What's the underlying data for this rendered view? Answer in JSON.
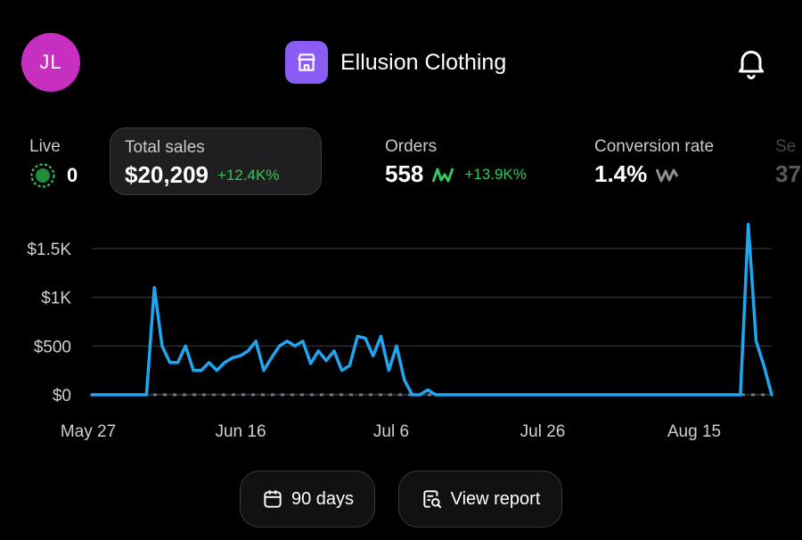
{
  "header": {
    "avatar_initials": "JL",
    "store_name": "Ellusion Clothing",
    "store_icon": "storefront-icon",
    "notification_icon": "bell-icon"
  },
  "metrics": {
    "live": {
      "label": "Live",
      "value": "0"
    },
    "total_sales": {
      "label": "Total sales",
      "value": "$20,209",
      "delta": "+12.4K%"
    },
    "orders": {
      "label": "Orders",
      "value": "558",
      "delta": "+13.9K%"
    },
    "conversion_rate": {
      "label": "Conversion rate",
      "value": "1.4%"
    },
    "sessions": {
      "label": "Se",
      "value": "37"
    }
  },
  "colors": {
    "accent_line": "#1ea7f0",
    "positive": "#34c759",
    "avatar": "#c72fc1",
    "store_icon_bg": "#8b5cf6"
  },
  "chart_data": {
    "type": "line",
    "y_ticks": [
      "$0",
      "$500",
      "$1K",
      "$1.5K"
    ],
    "x_ticks": [
      "May 27",
      "Jun 16",
      "Jul 6",
      "Jul 26",
      "Aug 15"
    ],
    "ylim": [
      0,
      1500
    ],
    "grid": true,
    "series": [
      {
        "x": [
          0,
          7,
          8,
          9,
          10,
          11,
          12,
          13,
          14,
          15,
          16,
          17,
          18,
          19,
          20,
          21,
          22,
          23,
          24,
          25,
          26,
          27,
          28,
          29,
          30,
          31,
          32,
          33,
          34,
          35,
          36,
          37,
          38,
          39,
          40,
          41,
          42,
          43,
          44,
          45,
          46,
          47,
          48,
          49,
          50,
          51,
          52,
          53,
          54,
          55,
          56,
          57,
          58,
          59,
          60,
          61,
          62,
          63,
          64,
          65,
          66,
          67,
          68,
          69,
          70,
          71,
          72,
          73,
          74,
          75,
          76,
          77,
          78,
          79,
          80,
          81,
          82,
          83,
          84,
          85,
          86,
          87
        ],
        "values": [
          0,
          0,
          1100,
          500,
          330,
          330,
          500,
          250,
          250,
          330,
          250,
          330,
          380,
          400,
          450,
          550,
          250,
          380,
          500,
          550,
          500,
          550,
          320,
          450,
          350,
          450,
          250,
          300,
          600,
          580,
          400,
          600,
          250,
          500,
          150,
          0,
          0,
          50,
          0,
          0,
          0,
          0,
          0,
          0,
          0,
          0,
          0,
          0,
          0,
          0,
          0,
          0,
          0,
          0,
          0,
          0,
          0,
          0,
          0,
          0,
          0,
          0,
          0,
          0,
          0,
          0,
          0,
          0,
          0,
          0,
          0,
          0,
          0,
          0,
          0,
          0,
          0,
          0,
          1750,
          550,
          300,
          0
        ]
      }
    ]
  },
  "controls": {
    "days_label": "90 days",
    "days_icon": "calendar-icon",
    "report_label": "View report",
    "report_icon": "report-search-icon"
  }
}
